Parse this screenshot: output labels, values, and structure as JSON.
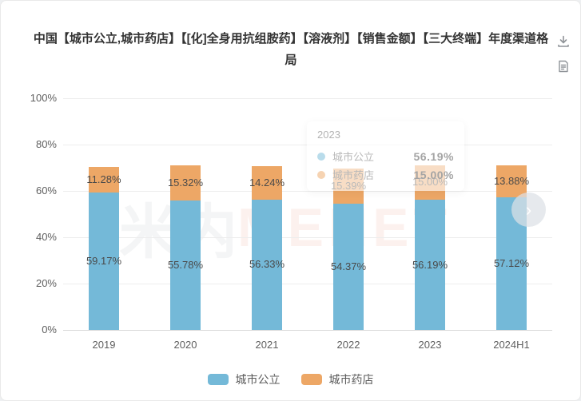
{
  "page": {
    "title": "中国【城市公立,城市药店】【[化]全身用抗组胺药】【溶液剂】【销售金额】【三大终端】年度渠道格局"
  },
  "toolbar": {
    "download_icon": "download-icon",
    "report_icon": "report-document-icon"
  },
  "chart_data": {
    "type": "bar",
    "stacked": true,
    "title": "中国【城市公立,城市药店】【[化]全身用抗组胺药】【溶液剂】【销售金额】【三大终端】年度渠道格局",
    "categories": [
      "2019",
      "2020",
      "2021",
      "2022",
      "2023",
      "2024H1"
    ],
    "series": [
      {
        "name": "城市公立",
        "color": "#74b9d8",
        "values": [
          59.17,
          55.78,
          56.33,
          54.37,
          56.19,
          57.12
        ]
      },
      {
        "name": "城市药店",
        "color": "#eda766",
        "values": [
          11.28,
          15.32,
          14.24,
          15.39,
          15.0,
          13.88
        ]
      }
    ],
    "xlabel": "",
    "ylabel": "",
    "ylim": [
      0,
      100
    ],
    "yticks": [
      0,
      20,
      40,
      60,
      80,
      100
    ],
    "ytick_suffix": "%",
    "grid": true,
    "legend_position": "bottom",
    "value_label_format": "0.00%"
  },
  "tooltip": {
    "title": "2023",
    "rows": [
      {
        "name": "城市公立",
        "value": "56.19%",
        "color": "#74b9d8"
      },
      {
        "name": "城市药店",
        "value": "15.00%",
        "color": "#eda766"
      }
    ]
  },
  "legend": {
    "items": [
      {
        "label": "城市公立",
        "color": "#74b9d8"
      },
      {
        "label": "城市药店",
        "color": "#eda766"
      }
    ]
  },
  "nav": {
    "next_glyph": "›"
  },
  "watermark": {
    "cn": "米内",
    "en": "MENET"
  }
}
